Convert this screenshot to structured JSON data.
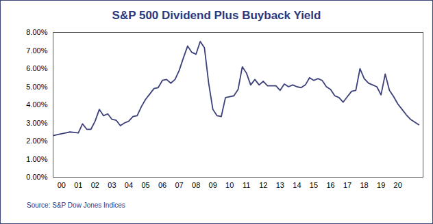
{
  "chart_data": {
    "type": "line",
    "title": "S&P 500 Dividend Plus Buyback Yield",
    "source": "Source: S&P Dow Jones Indices",
    "x": [
      2000,
      2000.25,
      2000.5,
      2000.75,
      2001,
      2001.25,
      2001.5,
      2001.75,
      2002,
      2002.25,
      2002.5,
      2002.75,
      2003,
      2003.25,
      2003.5,
      2003.75,
      2004,
      2004.25,
      2004.5,
      2004.75,
      2005,
      2005.25,
      2005.5,
      2005.75,
      2006,
      2006.25,
      2006.5,
      2006.75,
      2007,
      2007.25,
      2007.5,
      2007.75,
      2008,
      2008.25,
      2008.5,
      2008.75,
      2009,
      2009.25,
      2009.5,
      2009.75,
      2010,
      2010.25,
      2010.5,
      2010.75,
      2011,
      2011.25,
      2011.5,
      2011.75,
      2012,
      2012.25,
      2012.5,
      2012.75,
      2013,
      2013.25,
      2013.5,
      2013.75,
      2014,
      2014.25,
      2014.5,
      2014.75,
      2015,
      2015.25,
      2015.5,
      2015.75,
      2016,
      2016.25,
      2016.5,
      2016.75,
      2017,
      2017.25,
      2017.5,
      2017.75,
      2018,
      2018.25,
      2018.5,
      2018.75,
      2019,
      2019.25,
      2019.5,
      2019.75,
      2020,
      2020.25,
      2020.5,
      2020.75,
      2021,
      2021.25,
      2021.5,
      2021.75
    ],
    "values": [
      2.3,
      2.35,
      2.4,
      2.45,
      2.5,
      2.48,
      2.45,
      2.95,
      2.65,
      2.65,
      3.1,
      3.75,
      3.4,
      3.5,
      3.2,
      3.15,
      2.85,
      3.0,
      3.1,
      3.35,
      3.4,
      3.9,
      4.3,
      4.6,
      4.9,
      4.95,
      5.35,
      5.4,
      5.2,
      5.4,
      5.9,
      6.6,
      7.25,
      6.9,
      6.8,
      7.5,
      7.15,
      5.2,
      3.75,
      3.4,
      3.35,
      4.4,
      4.45,
      4.5,
      4.85,
      6.1,
      5.75,
      5.1,
      5.4,
      5.1,
      5.3,
      5.05,
      5.05,
      5.05,
      4.8,
      5.15,
      5.0,
      5.1,
      5.0,
      4.95,
      5.1,
      5.5,
      5.35,
      5.45,
      5.35,
      5.0,
      4.85,
      4.5,
      4.4,
      4.15,
      4.45,
      4.75,
      4.8,
      6.0,
      5.45,
      5.2,
      5.1,
      5.0,
      4.55,
      5.7,
      4.8,
      4.45,
      4.05,
      3.75,
      3.45,
      3.2,
      3.05,
      2.9
    ],
    "color": "#3b3f7a",
    "xlim": [
      2000,
      2022
    ],
    "xticks": [
      {
        "value": 2000.5,
        "label": "00"
      },
      {
        "value": 2001.5,
        "label": "01"
      },
      {
        "value": 2002.5,
        "label": "02"
      },
      {
        "value": 2003.5,
        "label": "03"
      },
      {
        "value": 2004.5,
        "label": "04"
      },
      {
        "value": 2005.5,
        "label": "05"
      },
      {
        "value": 2006.5,
        "label": "06"
      },
      {
        "value": 2007.5,
        "label": "07"
      },
      {
        "value": 2008.5,
        "label": "08"
      },
      {
        "value": 2009.5,
        "label": "09"
      },
      {
        "value": 2010.5,
        "label": "10"
      },
      {
        "value": 2011.5,
        "label": "11"
      },
      {
        "value": 2012.5,
        "label": "12"
      },
      {
        "value": 2013.5,
        "label": "13"
      },
      {
        "value": 2014.5,
        "label": "14"
      },
      {
        "value": 2015.5,
        "label": "15"
      },
      {
        "value": 2016.5,
        "label": "16"
      },
      {
        "value": 2017.5,
        "label": "17"
      },
      {
        "value": 2018.5,
        "label": "18"
      },
      {
        "value": 2019.5,
        "label": "19"
      },
      {
        "value": 2020.5,
        "label": "20"
      }
    ],
    "ylim": [
      0,
      8
    ],
    "yticks": [
      {
        "value": 0,
        "label": "0.00%"
      },
      {
        "value": 1,
        "label": "1.00%"
      },
      {
        "value": 2,
        "label": "2.00%"
      },
      {
        "value": 3,
        "label": "3.00%"
      },
      {
        "value": 4,
        "label": "4.00%"
      },
      {
        "value": 5,
        "label": "5.00%"
      },
      {
        "value": 6,
        "label": "6.00%"
      },
      {
        "value": 7,
        "label": "7.00%"
      },
      {
        "value": 8,
        "label": "8.00%"
      }
    ],
    "grid": false
  }
}
